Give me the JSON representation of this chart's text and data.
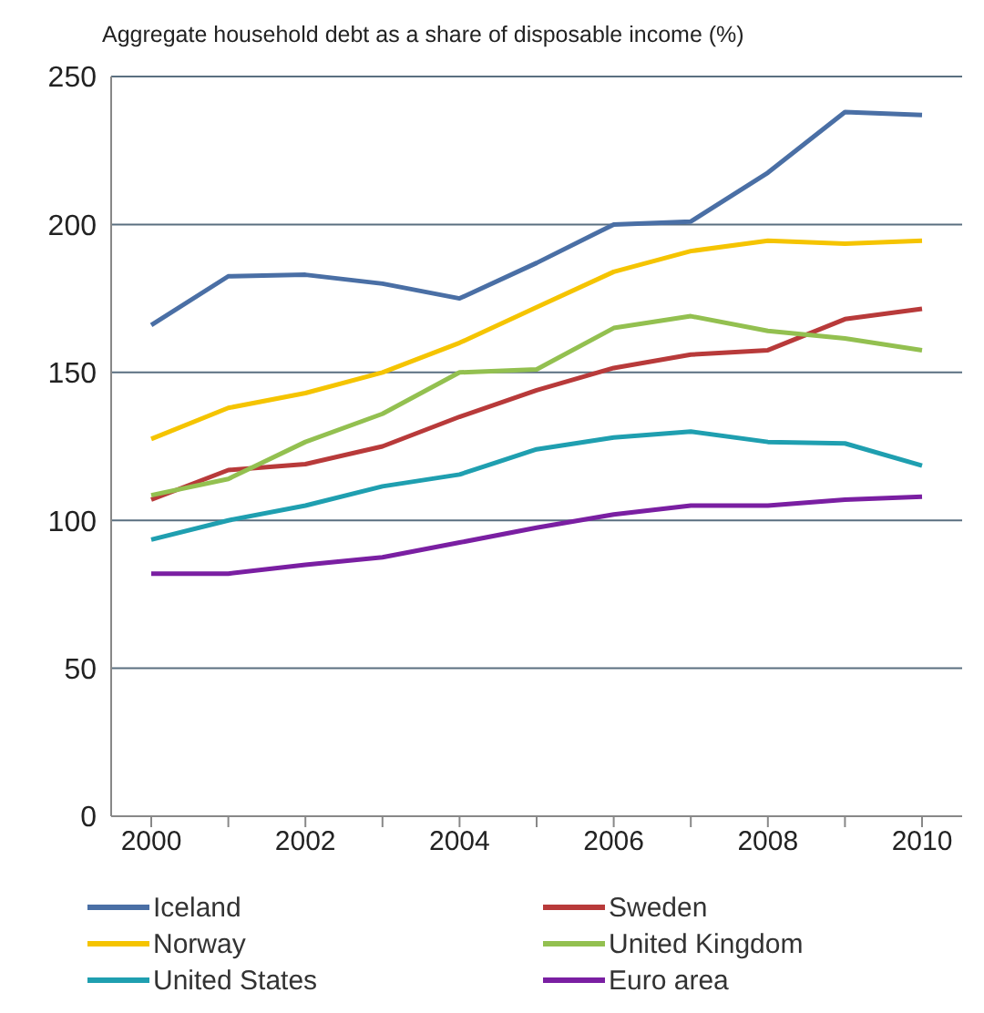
{
  "chart_data": {
    "type": "line",
    "title": "Aggregate household debt as a share of disposable income (%)",
    "categories": [
      "2000",
      null,
      "2002",
      null,
      "2004",
      null,
      "2006",
      null,
      "2008",
      null,
      "2010"
    ],
    "series": [
      {
        "name": "Iceland",
        "color": "#4a6fa5",
        "values": [
          166,
          182.5,
          183,
          180,
          175,
          187,
          200,
          201,
          217.5,
          238,
          237
        ]
      },
      {
        "name": "Sweden",
        "color": "#b83a3a",
        "values": [
          107,
          117,
          119,
          125,
          135,
          144,
          151.5,
          156,
          157.5,
          168,
          171.5
        ]
      },
      {
        "name": "Norway",
        "color": "#f5c400",
        "values": [
          127.5,
          138,
          143,
          150,
          160,
          172,
          184,
          191,
          194.5,
          193.5,
          194.5
        ]
      },
      {
        "name": "United Kingdom",
        "color": "#93c050",
        "values": [
          108.5,
          114,
          126.5,
          136,
          150,
          151,
          165,
          169,
          164,
          161.5,
          157.5
        ]
      },
      {
        "name": "United States",
        "color": "#1f9fb0",
        "values": [
          93.5,
          100,
          105,
          111.5,
          115.5,
          124,
          128,
          130,
          126.5,
          126,
          118.5
        ]
      },
      {
        "name": "Euro area",
        "color": "#7a1fa2",
        "values": [
          82,
          82,
          85,
          87.5,
          92.5,
          97.5,
          102,
          105,
          105,
          107,
          108
        ]
      }
    ],
    "ylim": [
      0,
      250
    ],
    "yticks": [
      0,
      50,
      100,
      150,
      200,
      250
    ],
    "grid": "y",
    "legend": "bottom",
    "marker": "none",
    "line_style": "solid"
  }
}
